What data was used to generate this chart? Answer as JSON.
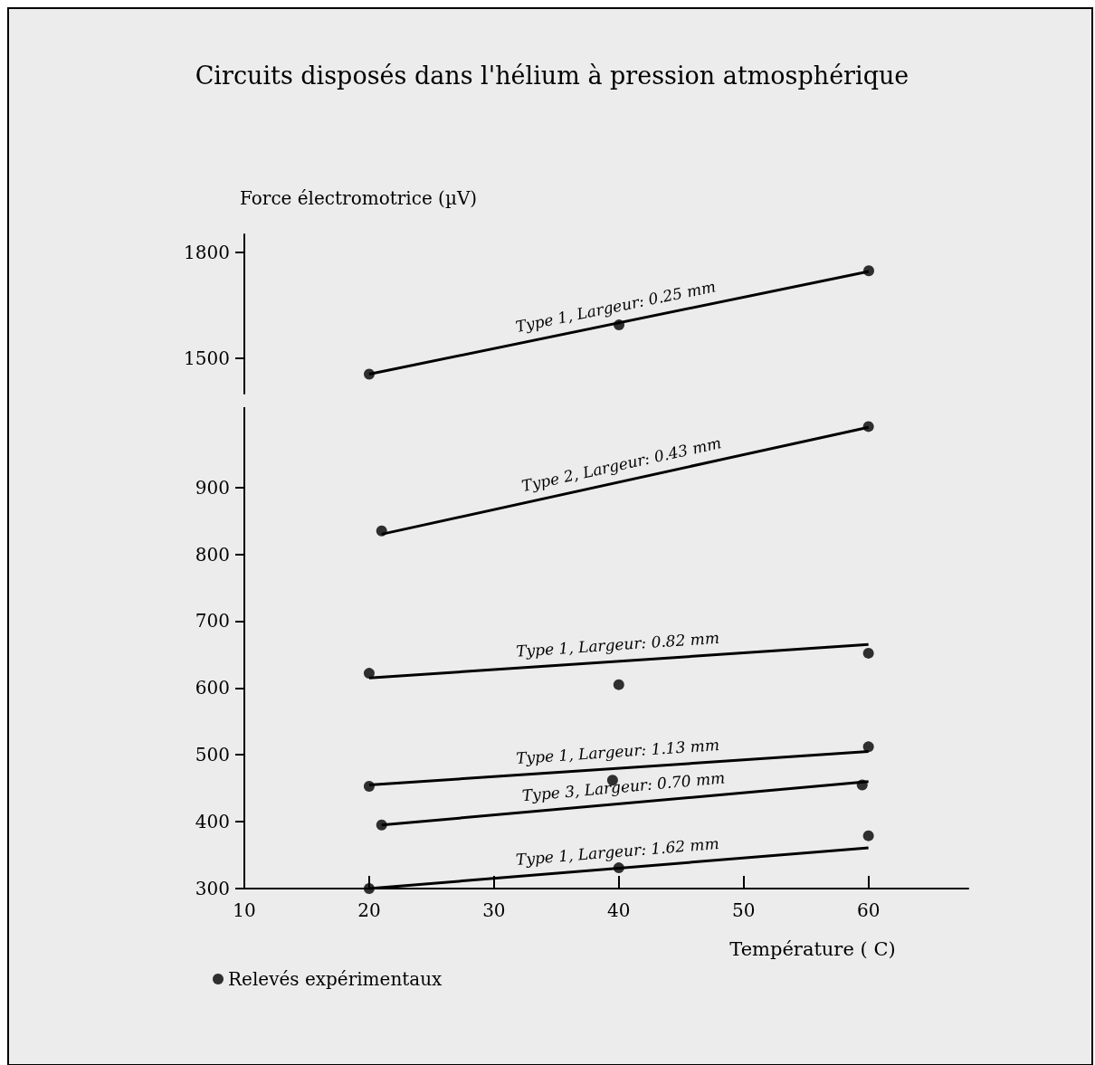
{
  "chart_data": [
    {
      "type": "line",
      "title": "Circuits disposés dans l'hélium à pression atmosphérique",
      "ylabel": "Force électromotrice (µV)",
      "xlim": [
        10,
        60
      ],
      "xticks": [
        10,
        20,
        30,
        40,
        50,
        60
      ],
      "ylim": [
        1400,
        1850
      ],
      "yticks": [
        1500,
        1800
      ],
      "tick_labels": "y",
      "grid": false,
      "legend": false,
      "series": [
        {
          "name": "Type 1, Largeur: 0.25 mm",
          "x": [
            20,
            60
          ],
          "values": [
            1455,
            1745
          ],
          "color": "#000000",
          "marker": "none"
        },
        {
          "type": "scatter",
          "x": [
            20,
            40,
            60
          ],
          "values": [
            1455,
            1594,
            1747
          ],
          "color": "#000000",
          "marker": "circle"
        }
      ]
    },
    {
      "type": "line",
      "xlabel": "Température ( C)",
      "xlim": [
        10,
        68
      ],
      "xticks": [
        10,
        20,
        30,
        40,
        50,
        60
      ],
      "ylim": [
        300,
        1020
      ],
      "yticks": [
        300,
        400,
        500,
        600,
        700,
        800,
        900
      ],
      "grid": false,
      "legend": "bottom left",
      "series": [
        {
          "name": "Type 2, Largeur: 0.43 mm",
          "x": [
            21,
            60
          ],
          "values": [
            830,
            990
          ],
          "color": "#000000",
          "marker": "none"
        },
        {
          "name": "Type 1, Largeur: 0.82 mm",
          "x": [
            20,
            60
          ],
          "values": [
            615,
            665
          ],
          "color": "#000000",
          "marker": "none"
        },
        {
          "name": "Type 1, Largeur: 1.13 mm",
          "x": [
            20,
            60
          ],
          "values": [
            455,
            505
          ],
          "color": "#000000",
          "marker": "none"
        },
        {
          "name": "Type 3, Largeur: 0.70 mm",
          "x": [
            21,
            60
          ],
          "values": [
            395,
            460
          ],
          "color": "#000000",
          "marker": "none"
        },
        {
          "name": "Type 1, Largeur: 1.62 mm",
          "x": [
            20,
            60
          ],
          "values": [
            300,
            361
          ],
          "color": "#000000",
          "marker": "none"
        },
        {
          "type": "scatter",
          "name": "Relevés expérimentaux",
          "x": [
            21,
            60,
            20,
            40,
            60,
            20,
            39.5,
            60,
            21,
            59.5,
            20,
            40,
            60
          ],
          "values": [
            835,
            991,
            622,
            605,
            652,
            453,
            462,
            512,
            395,
            455,
            300,
            331,
            379
          ],
          "color": "#000000",
          "marker": "circle"
        }
      ]
    }
  ]
}
